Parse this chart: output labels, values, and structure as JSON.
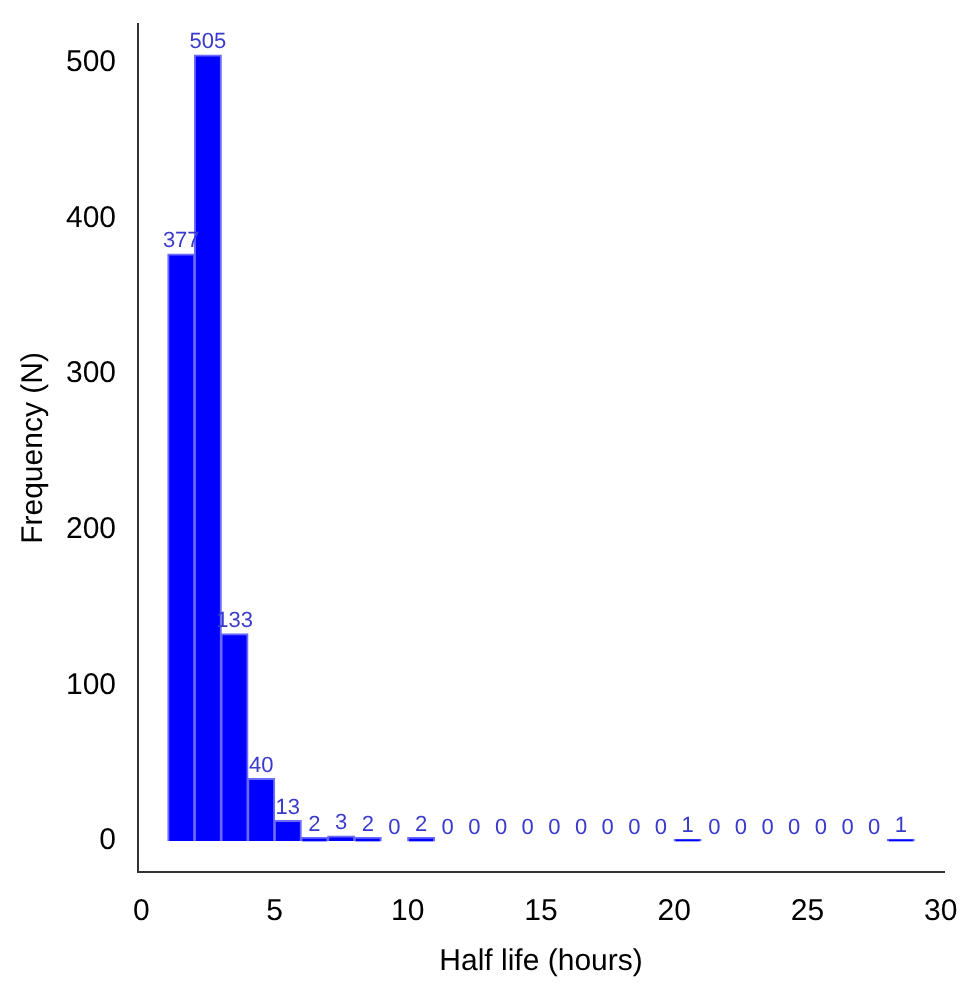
{
  "chart_data": {
    "type": "histogram",
    "xlabel": "Half life (hours)",
    "ylabel": "Frequency (N)",
    "bins": [
      1,
      2,
      3,
      4,
      5,
      6,
      7,
      8,
      9,
      10,
      11,
      12,
      13,
      14,
      15,
      16,
      17,
      18,
      19,
      20,
      21,
      22,
      23,
      24,
      25,
      26,
      27,
      28,
      29
    ],
    "values": [
      377,
      505,
      133,
      40,
      13,
      2,
      3,
      2,
      0,
      2,
      0,
      0,
      0,
      0,
      0,
      0,
      0,
      0,
      0,
      1,
      0,
      0,
      0,
      0,
      0,
      0,
      0,
      1
    ],
    "color": "#0000ff",
    "data_labels": true,
    "grid": false,
    "xlim": [
      -0.12,
      30.12
    ],
    "xticks": [
      0,
      5,
      10,
      15,
      20,
      25,
      30
    ],
    "ylim": [
      -20,
      525
    ],
    "yticks": [
      0,
      100,
      200,
      300,
      400,
      500
    ]
  }
}
